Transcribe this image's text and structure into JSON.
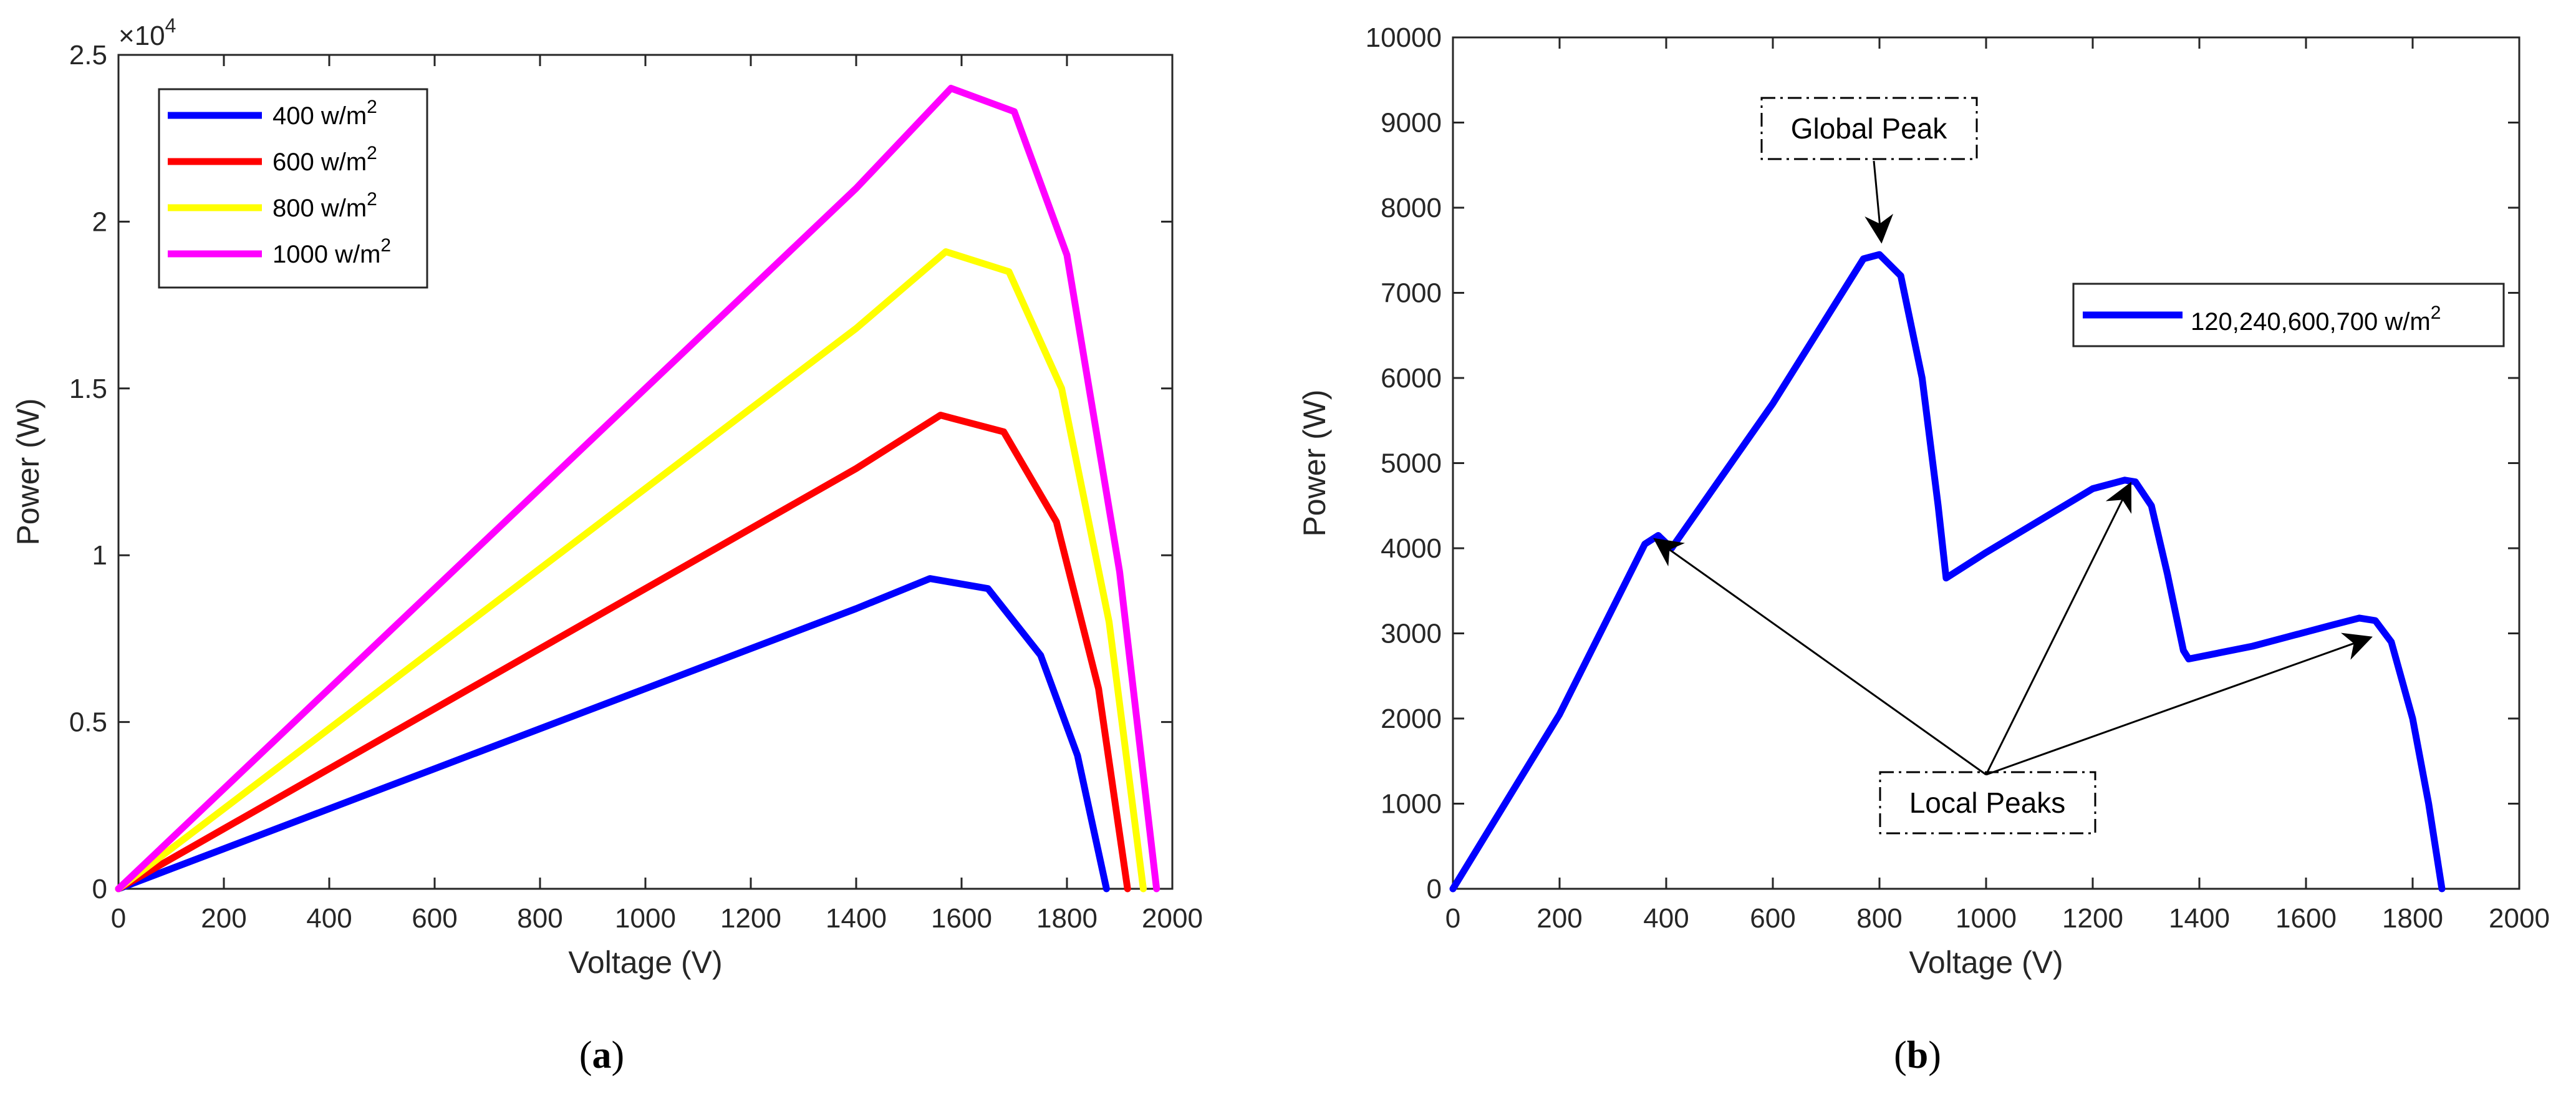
{
  "chart_data": [
    {
      "type": "line",
      "panel_label": "a",
      "xlabel": "Voltage (V)",
      "ylabel": "Power (W)",
      "xlim": [
        0,
        2000
      ],
      "ylim": [
        0,
        25000
      ],
      "x_ticks": [
        "0",
        "200",
        "400",
        "600",
        "800",
        "1000",
        "1200",
        "1400",
        "1600",
        "1800",
        "2000"
      ],
      "y_ticks": [
        "0",
        "0.5",
        "1",
        "1.5",
        "2",
        "2.5"
      ],
      "y_exponent": "×10",
      "y_exponent_power": "4",
      "legend_position": "top-left",
      "series": [
        {
          "name": "400 w/m",
          "unit_power": "2",
          "color": "#0000ff",
          "x": [
            0,
            200,
            400,
            600,
            800,
            1000,
            1200,
            1400,
            1540,
            1650,
            1750,
            1820,
            1875
          ],
          "y": [
            0,
            1200,
            2400,
            3600,
            4800,
            6000,
            7200,
            8400,
            9300,
            9000,
            7000,
            4000,
            0
          ]
        },
        {
          "name": "600 w/m",
          "unit_power": "2",
          "color": "#ff0000",
          "x": [
            0,
            200,
            400,
            600,
            800,
            1000,
            1200,
            1400,
            1560,
            1680,
            1780,
            1860,
            1915
          ],
          "y": [
            0,
            1800,
            3600,
            5400,
            7200,
            9000,
            10800,
            12600,
            14200,
            13700,
            11000,
            6000,
            0
          ]
        },
        {
          "name": "800 w/m",
          "unit_power": "2",
          "color": "#ffff00",
          "x": [
            0,
            200,
            400,
            600,
            800,
            1000,
            1200,
            1400,
            1570,
            1690,
            1790,
            1880,
            1945
          ],
          "y": [
            0,
            2400,
            4800,
            7200,
            9600,
            12000,
            14400,
            16800,
            19100,
            18500,
            15000,
            8000,
            0
          ]
        },
        {
          "name": "1000 w/m",
          "unit_power": "2",
          "color": "#ff00ff",
          "x": [
            0,
            200,
            400,
            600,
            800,
            1000,
            1200,
            1400,
            1580,
            1700,
            1800,
            1900,
            1970
          ],
          "y": [
            0,
            3000,
            6000,
            9000,
            12000,
            15000,
            18000,
            21000,
            24000,
            23300,
            19000,
            9500,
            0
          ]
        }
      ]
    },
    {
      "type": "line",
      "panel_label": "b",
      "xlabel": "Voltage (V)",
      "ylabel": "Power (W)",
      "xlim": [
        0,
        2000
      ],
      "ylim": [
        0,
        10000
      ],
      "x_ticks": [
        "0",
        "200",
        "400",
        "600",
        "800",
        "1000",
        "1200",
        "1400",
        "1600",
        "1800",
        "2000"
      ],
      "y_ticks": [
        "0",
        "1000",
        "2000",
        "3000",
        "4000",
        "5000",
        "6000",
        "7000",
        "8000",
        "9000",
        "10000"
      ],
      "legend_position": "top-right",
      "series": [
        {
          "name": "120,240,600,700 w/m",
          "unit_power": "2",
          "color": "#0000ff",
          "x": [
            0,
            200,
            360,
            385,
            410,
            600,
            770,
            800,
            840,
            880,
            910,
            925,
            1000,
            1200,
            1260,
            1280,
            1310,
            1340,
            1370,
            1380,
            1500,
            1650,
            1700,
            1730,
            1760,
            1800,
            1830,
            1855
          ],
          "y": [
            0,
            2050,
            4050,
            4150,
            4000,
            5700,
            7400,
            7450,
            7200,
            6000,
            4500,
            3650,
            3950,
            4700,
            4800,
            4780,
            4500,
            3700,
            2800,
            2700,
            2850,
            3100,
            3180,
            3150,
            2900,
            2000,
            1000,
            0
          ]
        }
      ],
      "annotations": [
        {
          "text": "Global Peak",
          "target_x": 800,
          "target_y": 7450
        },
        {
          "text": "Local Peaks",
          "targets": [
            [
              380,
              4100
            ],
            [
              1270,
              4750
            ],
            [
              1720,
              2950
            ]
          ]
        }
      ]
    }
  ]
}
